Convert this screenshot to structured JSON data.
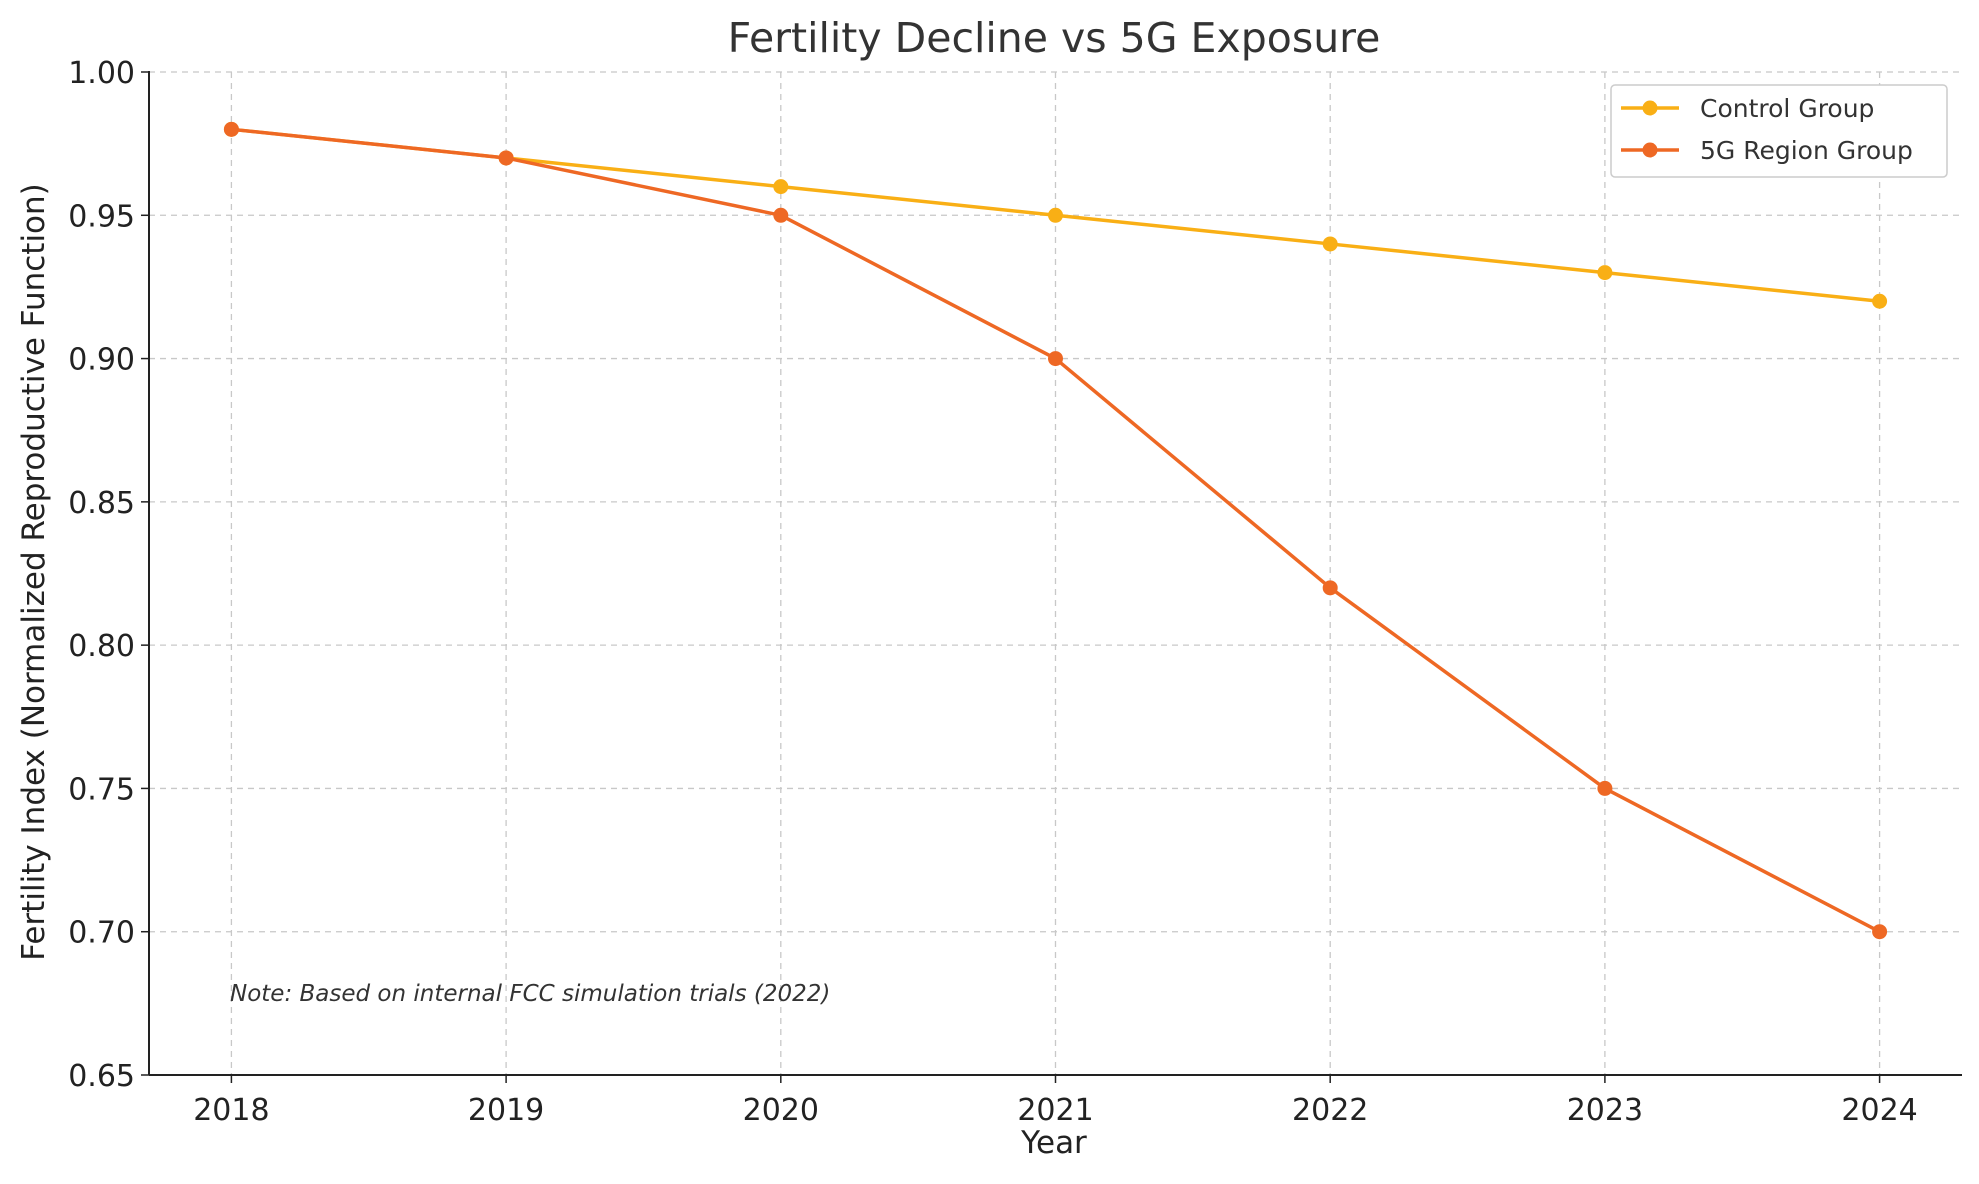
{
  "chart_data": {
    "type": "line",
    "title": "Fertility Decline vs 5G Exposure",
    "xlabel": "Year",
    "ylabel": "Fertility Index (Normalized Reproductive Function)",
    "x": [
      2018,
      2019,
      2020,
      2021,
      2022,
      2023,
      2024
    ],
    "x_tick_labels": [
      "2018",
      "2019",
      "2020",
      "2021",
      "2022",
      "2023",
      "2024"
    ],
    "ylim": [
      0.65,
      1.0
    ],
    "y_ticks": [
      0.65,
      0.7,
      0.75,
      0.8,
      0.85,
      0.9,
      0.95,
      1.0
    ],
    "y_tick_labels": [
      "0.65",
      "0.70",
      "0.75",
      "0.80",
      "0.85",
      "0.90",
      "0.95",
      "1.00"
    ],
    "grid": true,
    "legend_position": "top-right",
    "series": [
      {
        "name": "Control Group",
        "color": "#F9AF15",
        "values": [
          0.98,
          0.97,
          0.96,
          0.95,
          0.94,
          0.93,
          0.92
        ]
      },
      {
        "name": "5G Region Group",
        "color": "#EE6824",
        "values": [
          0.98,
          0.97,
          0.95,
          0.9,
          0.82,
          0.75,
          0.7
        ]
      }
    ],
    "annotation": "Note: Based on internal FCC simulation trials (2022)"
  }
}
